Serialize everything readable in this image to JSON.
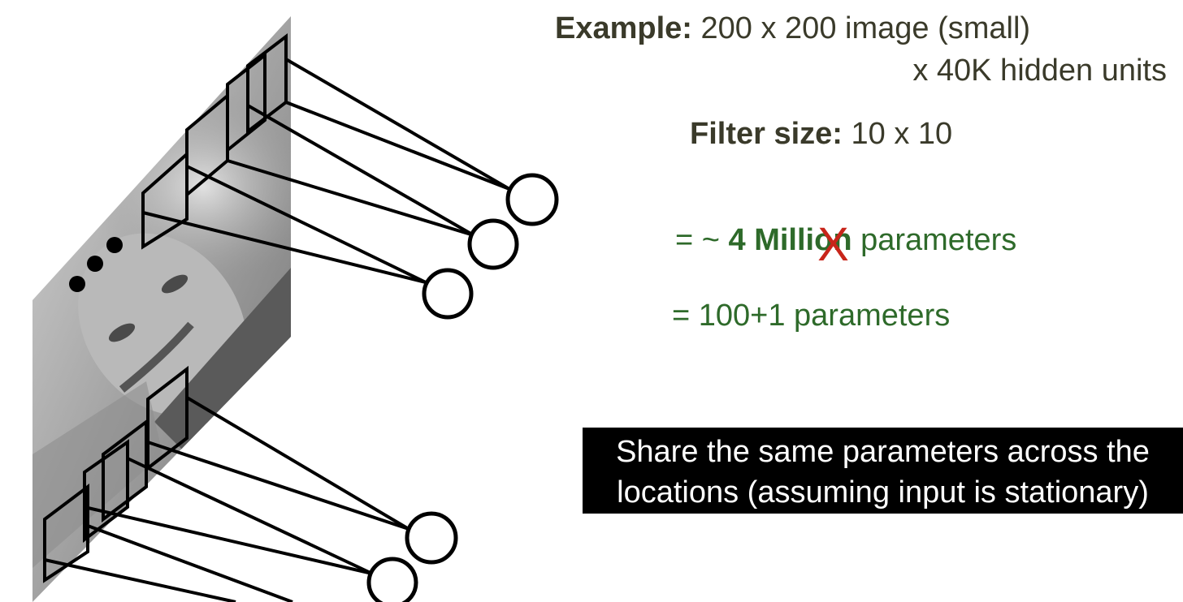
{
  "example": {
    "label": "Example:",
    "image_size": "200 x 200 image (small)",
    "hidden_units": "x 40K hidden units"
  },
  "filter": {
    "label": "Filter size:",
    "value": "10 x 10"
  },
  "million_params": {
    "prefix": "= ~",
    "amount_before": "4 Milli",
    "struck_letter": "o",
    "amount_after": "n",
    "suffix": "parameters",
    "strike_mark": "X"
  },
  "shared_params": {
    "text": "= 100+1 parameters"
  },
  "callout": {
    "line1": "Share the same parameters across the",
    "line2": "locations (assuming input is stationary)"
  },
  "ellipsis_dots": "• • •",
  "colors": {
    "title_text": "#3a3a2a",
    "param_text": "#2e6a2a",
    "strike_mark": "#c8251a",
    "callout_bg": "#000000",
    "callout_text": "#ffffff",
    "lines": "#000000"
  }
}
